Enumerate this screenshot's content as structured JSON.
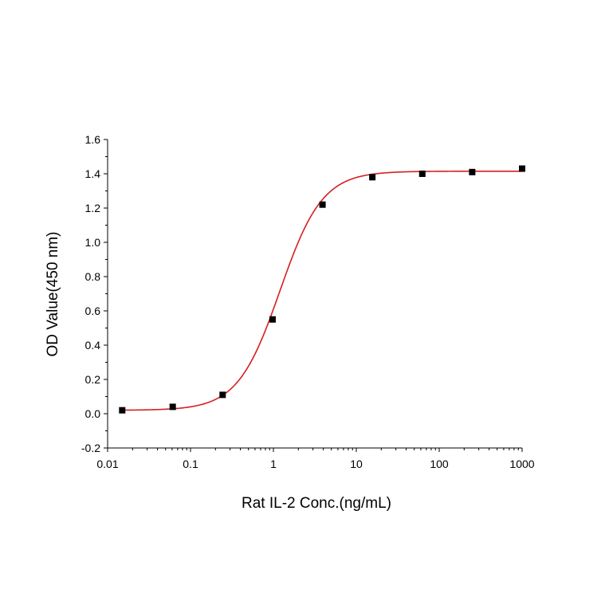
{
  "chart_data": {
    "type": "scatter",
    "xlabel": "Rat IL-2 Conc.(ng/mL)",
    "ylabel": "OD Value(450 nm)",
    "x_scale": "log",
    "xlim": [
      0.01,
      1000
    ],
    "ylim": [
      -0.2,
      1.6
    ],
    "x_ticks": [
      {
        "value": 0.01,
        "label": "0.01"
      },
      {
        "value": 0.1,
        "label": "0.1"
      },
      {
        "value": 1,
        "label": "1"
      },
      {
        "value": 10,
        "label": "10"
      },
      {
        "value": 100,
        "label": "100"
      },
      {
        "value": 1000,
        "label": "1000"
      }
    ],
    "y_ticks": [
      {
        "value": -0.2,
        "label": "-0.2"
      },
      {
        "value": 0.0,
        "label": "0.0"
      },
      {
        "value": 0.2,
        "label": "0.2"
      },
      {
        "value": 0.4,
        "label": "0.4"
      },
      {
        "value": 0.6,
        "label": "0.6"
      },
      {
        "value": 0.8,
        "label": "0.8"
      },
      {
        "value": 1.0,
        "label": "1.0"
      },
      {
        "value": 1.2,
        "label": "1.2"
      },
      {
        "value": 1.4,
        "label": "1.4"
      },
      {
        "value": 1.6,
        "label": "1.6"
      }
    ],
    "points": [
      {
        "x": 0.015,
        "y": 0.02
      },
      {
        "x": 0.061,
        "y": 0.04
      },
      {
        "x": 0.244,
        "y": 0.11
      },
      {
        "x": 0.977,
        "y": 0.55
      },
      {
        "x": 3.91,
        "y": 1.22
      },
      {
        "x": 15.6,
        "y": 1.38
      },
      {
        "x": 62.5,
        "y": 1.4
      },
      {
        "x": 250,
        "y": 1.41
      },
      {
        "x": 1000,
        "y": 1.43
      }
    ],
    "fit": {
      "model": "4PL",
      "bottom": 0.02,
      "top": 1.415,
      "ec50": 1.2,
      "hill": 1.7,
      "color": "#d42020"
    },
    "marker_color": "#000000",
    "grid": false
  }
}
